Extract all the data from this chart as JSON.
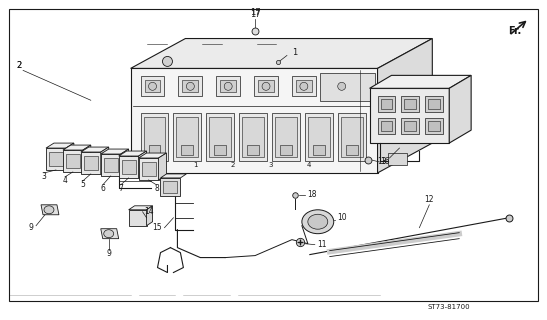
{
  "background_color": "#ffffff",
  "line_color": "#1a1a1a",
  "diagram_code": "ST73-81700",
  "fig_width": 5.47,
  "fig_height": 3.2,
  "dpi": 100
}
